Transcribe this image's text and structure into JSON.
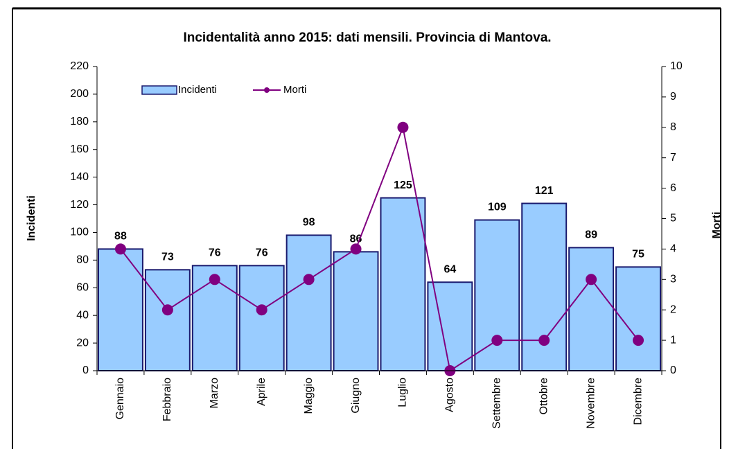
{
  "chart_data": {
    "type": "bar",
    "title": "Incidentalità  anno 2015: dati mensili. Provincia di Mantova.",
    "ylabel": "Incidenti",
    "y2label": "Morti",
    "categories": [
      "Gennaio",
      "Febbraio",
      "Marzo",
      "Aprile",
      "Maggio",
      "Giugno",
      "Luglio",
      "Agosto",
      "Settembre",
      "Ottobre",
      "Novembre",
      "Dicembre"
    ],
    "series": [
      {
        "name": "Incidenti",
        "type": "bar",
        "color": "#99ccff",
        "edge": "#1a1a6e",
        "values": [
          88,
          73,
          76,
          76,
          98,
          86,
          125,
          64,
          109,
          121,
          89,
          75
        ]
      },
      {
        "name": "Morti",
        "type": "line",
        "axis": "y2",
        "color": "#800080",
        "values": [
          4,
          2,
          3,
          2,
          3,
          4,
          8,
          0,
          1,
          1,
          3,
          1
        ]
      }
    ],
    "ylim": [
      0,
      220
    ],
    "yticks": [
      0,
      20,
      40,
      60,
      80,
      100,
      120,
      140,
      160,
      180,
      200,
      220
    ],
    "y2lim": [
      0,
      10
    ],
    "y2ticks": [
      0,
      1,
      2,
      3,
      4,
      5,
      6,
      7,
      8,
      9,
      10
    ],
    "legend": "top-left"
  }
}
